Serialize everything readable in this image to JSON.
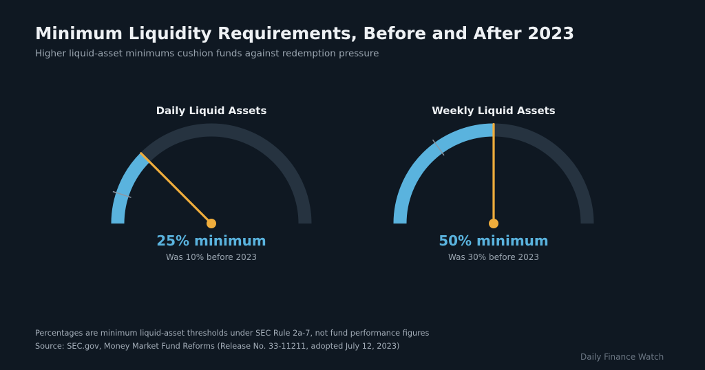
{
  "title": "Minimum Liquidity Requirements, Before and After 2023",
  "subtitle": "Higher liquid-asset minimums cushion funds against redemption pressure",
  "chart_data": [
    {
      "type": "gauge",
      "title": "Daily Liquid Assets",
      "value": 25,
      "previous_value": 10,
      "range": [
        0,
        100
      ],
      "unit": "%",
      "value_label": "25% minimum",
      "caption": "Was 10% before 2023"
    },
    {
      "type": "gauge",
      "title": "Weekly Liquid Assets",
      "value": 50,
      "previous_value": 30,
      "range": [
        0,
        100
      ],
      "unit": "%",
      "value_label": "50% minimum",
      "caption": "Was 30% before 2023"
    }
  ],
  "colors": {
    "fill": "#5ab3de",
    "track": "#263340",
    "needle": "#f0ad3c",
    "old_marker": "#8c98a4",
    "value_text": "#5ab3de"
  },
  "footnotes": {
    "note": "Percentages are minimum liquid-asset thresholds under SEC Rule 2a-7, not fund performance figures",
    "source": "Source: SEC.gov, Money Market Fund Reforms (Release No. 33-11211, adopted July 12, 2023)"
  },
  "brand": "Daily Finance Watch"
}
